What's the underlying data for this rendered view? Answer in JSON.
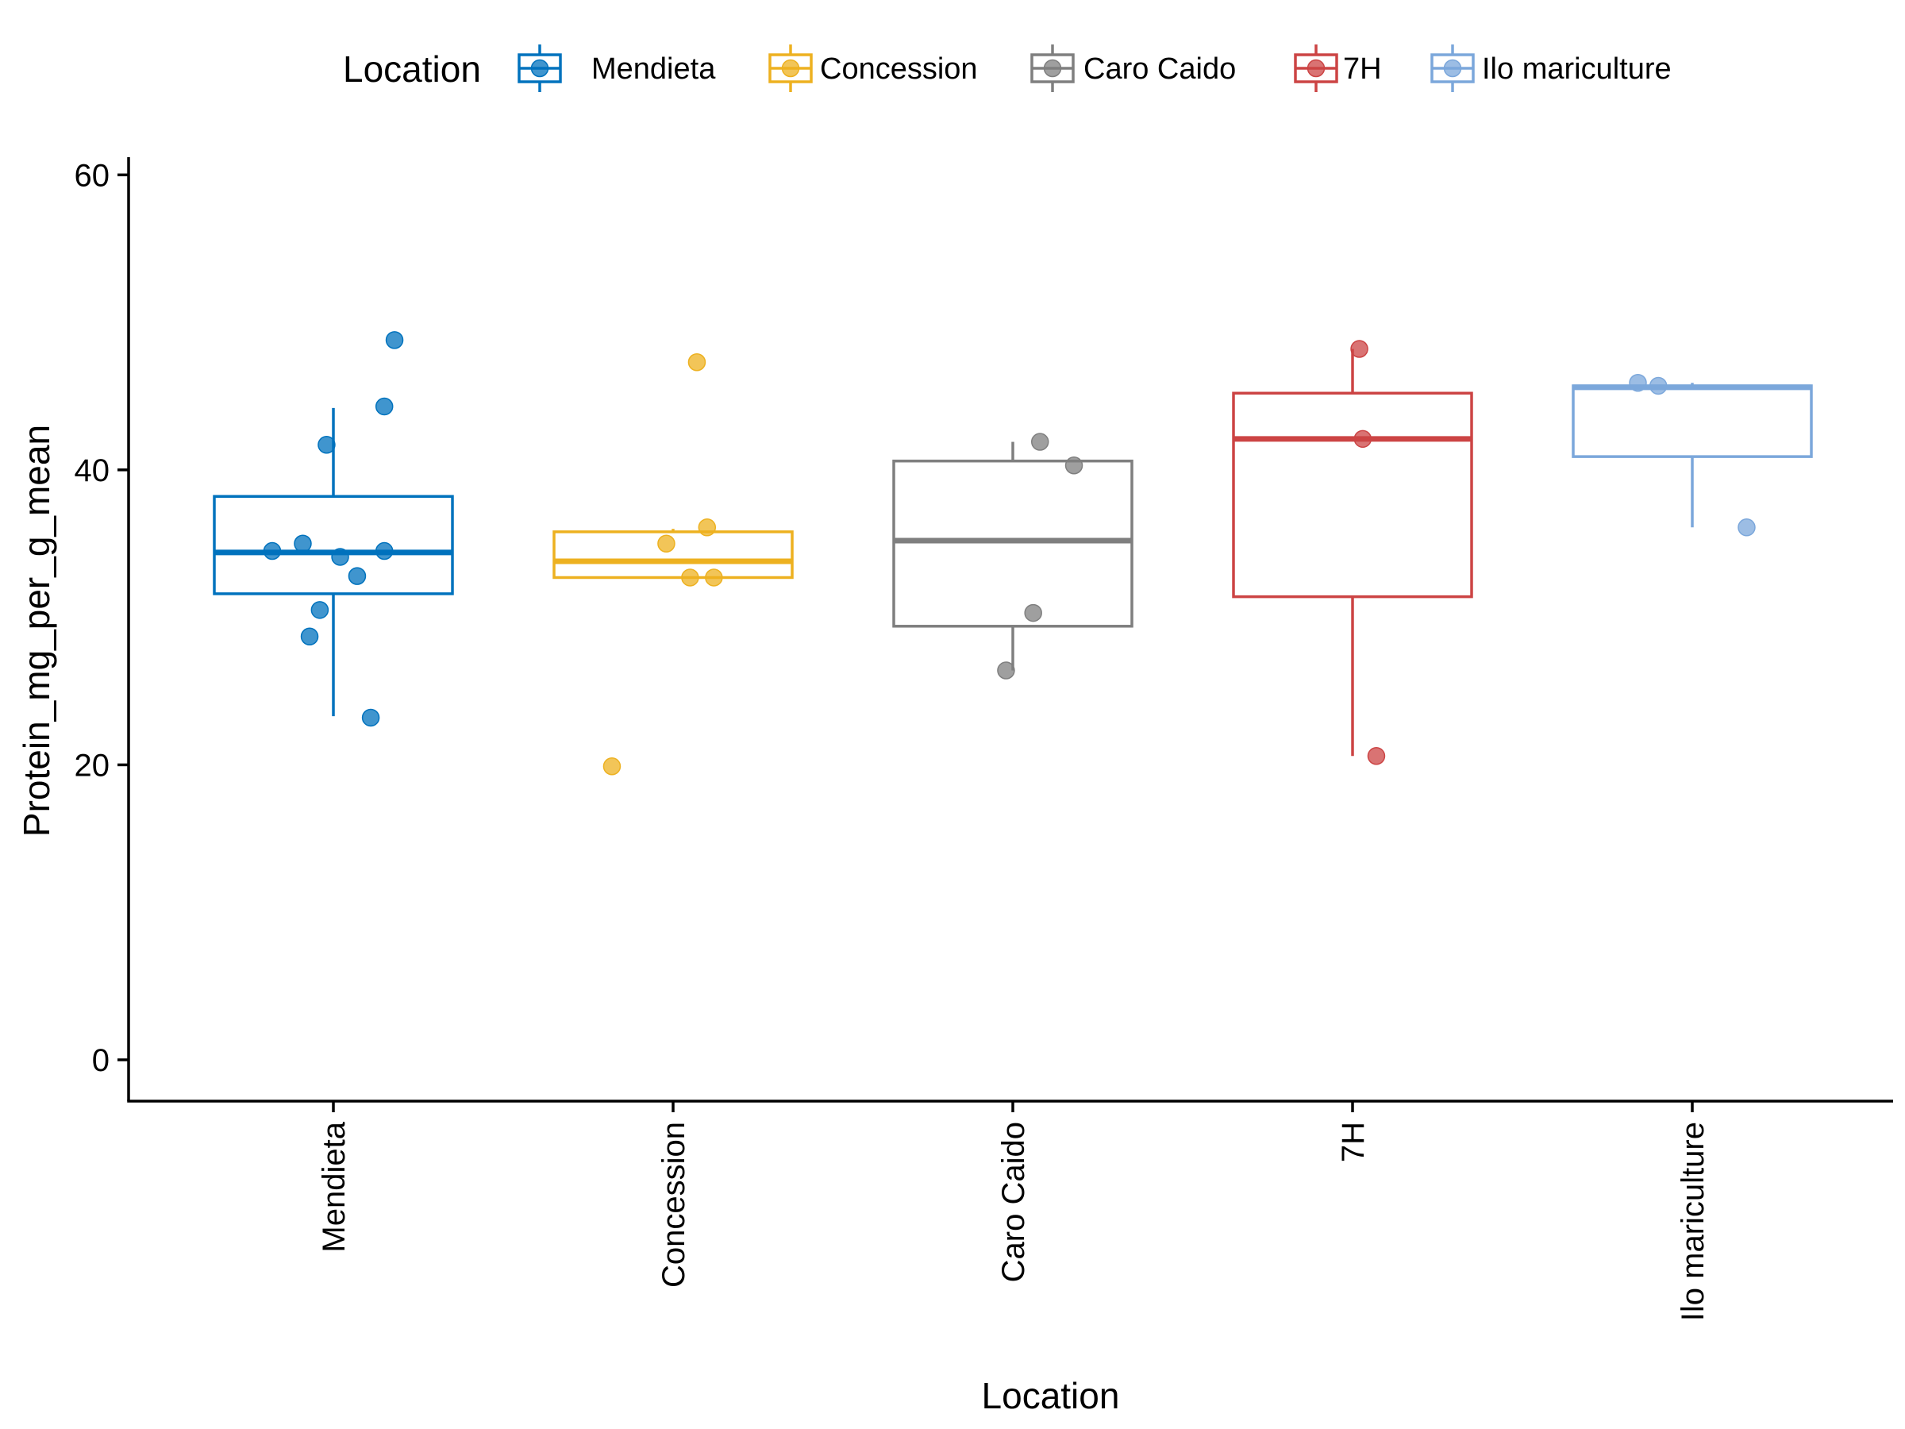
{
  "chart_data": {
    "type": "box",
    "xlabel": "Location",
    "ylabel": "Protein_mg_per_g_mean",
    "ylim": [
      -2.8,
      61.2
    ],
    "yticks": [
      0,
      20,
      40,
      60
    ],
    "grid": false,
    "legend": {
      "title": "Location",
      "placement": "top",
      "items": [
        "Mendieta",
        "Concession",
        "Caro Caido",
        "7H",
        "Ilo mariculture"
      ]
    },
    "categories": [
      "Mendieta",
      "Concession",
      "Caro Caido",
      "7H",
      "Ilo mariculture"
    ],
    "series": [
      {
        "name": "Mendieta",
        "color": "#0072BD",
        "box": {
          "whisker_low": 23.3,
          "q1": 31.6,
          "median": 34.4,
          "q3": 38.2,
          "whisker_high": 44.2
        },
        "points": [
          48.8,
          44.3,
          41.7,
          35.0,
          34.5,
          34.5,
          34.1,
          32.8,
          30.5,
          28.7,
          23.2
        ],
        "jitter": [
          0.18,
          0.15,
          -0.02,
          -0.09,
          -0.18,
          0.15,
          0.02,
          0.07,
          -0.04,
          -0.07,
          0.11
        ]
      },
      {
        "name": "Concession",
        "color": "#EDB120",
        "box": {
          "whisker_low": 32.7,
          "q1": 32.7,
          "median": 33.8,
          "q3": 35.8,
          "whisker_high": 36.0
        },
        "points": [
          47.3,
          36.1,
          35.0,
          32.7,
          32.7,
          19.9
        ],
        "jitter": [
          0.07,
          0.1,
          -0.02,
          0.05,
          0.12,
          -0.18
        ]
      },
      {
        "name": "Caro Caido",
        "color": "#7F7F7F",
        "box": {
          "whisker_low": 26.4,
          "q1": 29.4,
          "median": 35.2,
          "q3": 40.6,
          "whisker_high": 41.9
        },
        "points": [
          41.9,
          40.3,
          30.3,
          26.4
        ],
        "jitter": [
          0.08,
          0.18,
          0.06,
          -0.02
        ]
      },
      {
        "name": "7H",
        "color": "#CC4444",
        "box": {
          "whisker_low": 20.6,
          "q1": 31.4,
          "median": 42.1,
          "q3": 45.2,
          "whisker_high": 48.2
        },
        "points": [
          48.2,
          42.1,
          20.6
        ],
        "jitter": [
          0.02,
          0.03,
          0.07
        ]
      },
      {
        "name": "Ilo mariculture",
        "color": "#7BA7DB",
        "box": {
          "whisker_low": 36.1,
          "q1": 40.9,
          "median": 45.6,
          "q3": 45.7,
          "whisker_high": 45.9
        },
        "points": [
          45.9,
          45.7,
          36.1
        ],
        "jitter": [
          -0.16,
          -0.1,
          0.16
        ]
      }
    ]
  }
}
